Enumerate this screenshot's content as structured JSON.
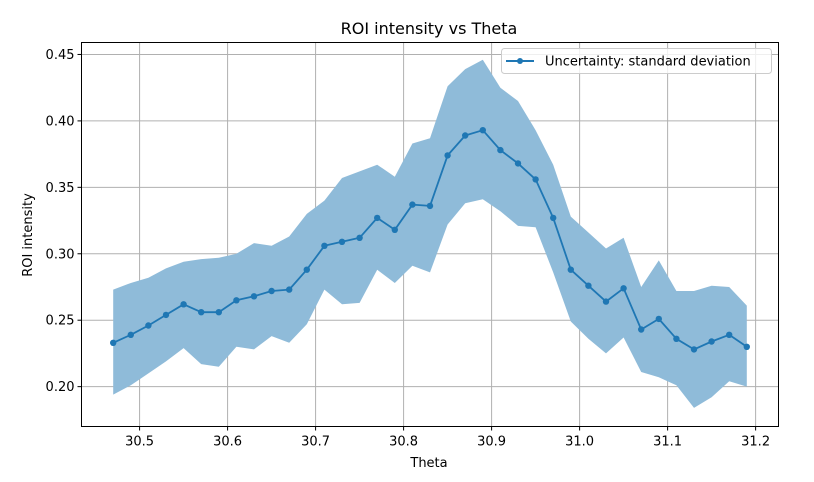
{
  "chart_data": {
    "type": "line",
    "title": "ROI intensity vs Theta",
    "xlabel": "Theta",
    "ylabel": "ROI intensity",
    "xlim": [
      30.434,
      31.226
    ],
    "ylim": [
      0.17,
      0.459
    ],
    "xticks": [
      "30.5",
      "30.6",
      "30.7",
      "30.8",
      "30.9",
      "31.0",
      "31.1",
      "31.2"
    ],
    "yticks": [
      "0.20",
      "0.25",
      "0.30",
      "0.35",
      "0.40",
      "0.45"
    ],
    "grid": true,
    "legend": {
      "position": "top-right",
      "entries": [
        "Uncertainty: standard deviation"
      ]
    },
    "colors": {
      "line": "#1f77b4",
      "band": "#8fbbd9",
      "grid": "#b0b0b0"
    },
    "x": [
      30.47,
      30.49,
      30.51,
      30.53,
      30.55,
      30.57,
      30.59,
      30.61,
      30.63,
      30.65,
      30.67,
      30.69,
      30.71,
      30.73,
      30.75,
      30.77,
      30.79,
      30.81,
      30.83,
      30.85,
      30.87,
      30.89,
      30.91,
      30.93,
      30.95,
      30.97,
      30.99,
      31.01,
      31.03,
      31.05,
      31.07,
      31.09,
      31.11,
      31.13,
      31.15,
      31.17,
      31.19
    ],
    "series": [
      {
        "name": "Uncertainty: standard deviation",
        "values": [
          0.233,
          0.239,
          0.246,
          0.254,
          0.262,
          0.256,
          0.256,
          0.265,
          0.268,
          0.272,
          0.273,
          0.288,
          0.306,
          0.309,
          0.312,
          0.327,
          0.318,
          0.337,
          0.336,
          0.374,
          0.389,
          0.393,
          0.378,
          0.368,
          0.356,
          0.327,
          0.288,
          0.276,
          0.264,
          0.274,
          0.243,
          0.251,
          0.236,
          0.228,
          0.234,
          0.239,
          0.23
        ],
        "upper": [
          0.273,
          0.278,
          0.282,
          0.289,
          0.294,
          0.296,
          0.297,
          0.3,
          0.308,
          0.306,
          0.313,
          0.33,
          0.34,
          0.357,
          0.362,
          0.367,
          0.358,
          0.383,
          0.387,
          0.426,
          0.439,
          0.446,
          0.425,
          0.415,
          0.393,
          0.367,
          0.328,
          0.316,
          0.304,
          0.312,
          0.275,
          0.295,
          0.272,
          0.272,
          0.276,
          0.275,
          0.261
        ],
        "lower": [
          0.194,
          0.201,
          0.21,
          0.219,
          0.229,
          0.217,
          0.215,
          0.23,
          0.228,
          0.238,
          0.233,
          0.247,
          0.273,
          0.262,
          0.263,
          0.288,
          0.278,
          0.291,
          0.286,
          0.322,
          0.338,
          0.341,
          0.332,
          0.321,
          0.32,
          0.286,
          0.249,
          0.236,
          0.225,
          0.237,
          0.211,
          0.207,
          0.201,
          0.184,
          0.192,
          0.204,
          0.2
        ]
      }
    ]
  }
}
